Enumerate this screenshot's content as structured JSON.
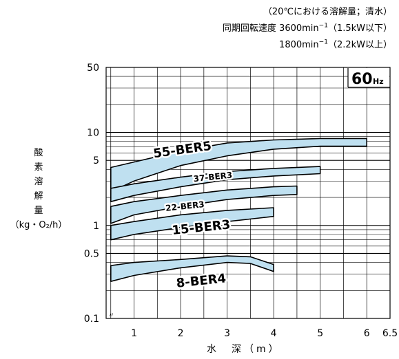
{
  "notes": {
    "line1": "（20℃における溶解量；清水）",
    "line2_prefix": "同期回転速度 3600min",
    "line2_sup": "−1",
    "line2_suffix": "（1.5kW以下）",
    "line3_prefix": "1800min",
    "line3_sup": "−1",
    "line3_suffix": "（2.2kW以上）"
  },
  "chart_data": {
    "type": "area",
    "badge": {
      "value": "60",
      "unit": "Hz"
    },
    "ylabel_chars": [
      "酸",
      "素",
      "溶",
      "解",
      "量"
    ],
    "ylabel_unit": "（kg・O₂/h）",
    "xlabel": "水　深（m）",
    "xlim": [
      0.4,
      6.5
    ],
    "ylim": [
      0.1,
      50
    ],
    "y_scale": "log",
    "x_ticks": [
      "1",
      "2",
      "3",
      "4",
      "5",
      "6",
      "6.5"
    ],
    "y_ticks": [
      "0.1",
      "0.5",
      "1",
      "5",
      "10",
      "50"
    ],
    "grid": true,
    "series": [
      {
        "name": "55-BER5",
        "upper": [
          [
            0.5,
            4.2
          ],
          [
            1,
            4.8
          ],
          [
            2,
            6.3
          ],
          [
            3,
            7.7
          ],
          [
            4,
            8.3
          ],
          [
            5,
            8.6
          ],
          [
            6,
            8.6
          ]
        ],
        "lower": [
          [
            0.5,
            2.3
          ],
          [
            1,
            3.0
          ],
          [
            2,
            4.4
          ],
          [
            3,
            5.6
          ],
          [
            4,
            6.6
          ],
          [
            5,
            7.1
          ],
          [
            6,
            7.1
          ]
        ]
      },
      {
        "name": "37-BER3",
        "upper": [
          [
            0.5,
            2.5
          ],
          [
            1,
            2.8
          ],
          [
            2,
            3.3
          ],
          [
            3,
            3.8
          ],
          [
            4,
            4.1
          ],
          [
            5,
            4.3
          ]
        ],
        "lower": [
          [
            0.5,
            1.8
          ],
          [
            1,
            2.1
          ],
          [
            2,
            2.6
          ],
          [
            3,
            3.1
          ],
          [
            4,
            3.4
          ],
          [
            5,
            3.6
          ]
        ]
      },
      {
        "name": "22-BER3",
        "upper": [
          [
            0.5,
            1.6
          ],
          [
            1,
            1.8
          ],
          [
            2,
            2.1
          ],
          [
            3,
            2.4
          ],
          [
            4,
            2.6
          ],
          [
            4.5,
            2.65
          ]
        ],
        "lower": [
          [
            0.5,
            1.05
          ],
          [
            1,
            1.3
          ],
          [
            2,
            1.6
          ],
          [
            3,
            1.9
          ],
          [
            4,
            2.1
          ],
          [
            4.5,
            2.15
          ]
        ]
      },
      {
        "name": "15-BER3",
        "upper": [
          [
            0.5,
            1.0
          ],
          [
            1,
            1.1
          ],
          [
            2,
            1.3
          ],
          [
            3,
            1.45
          ],
          [
            4,
            1.55
          ]
        ],
        "lower": [
          [
            0.5,
            0.7
          ],
          [
            1,
            0.8
          ],
          [
            2,
            0.95
          ],
          [
            3,
            1.1
          ],
          [
            4,
            1.25
          ]
        ]
      },
      {
        "name": "8-BER4",
        "upper": [
          [
            0.5,
            0.37
          ],
          [
            1,
            0.4
          ],
          [
            2,
            0.43
          ],
          [
            3,
            0.47
          ],
          [
            3.5,
            0.46
          ],
          [
            4,
            0.38
          ]
        ],
        "lower": [
          [
            0.5,
            0.25
          ],
          [
            1,
            0.29
          ],
          [
            2,
            0.35
          ],
          [
            3,
            0.4
          ],
          [
            3.5,
            0.39
          ],
          [
            4,
            0.32
          ]
        ]
      }
    ],
    "colors": {
      "fill": "#bfe0f0",
      "stroke": "#000000",
      "grid": "#000000"
    }
  }
}
